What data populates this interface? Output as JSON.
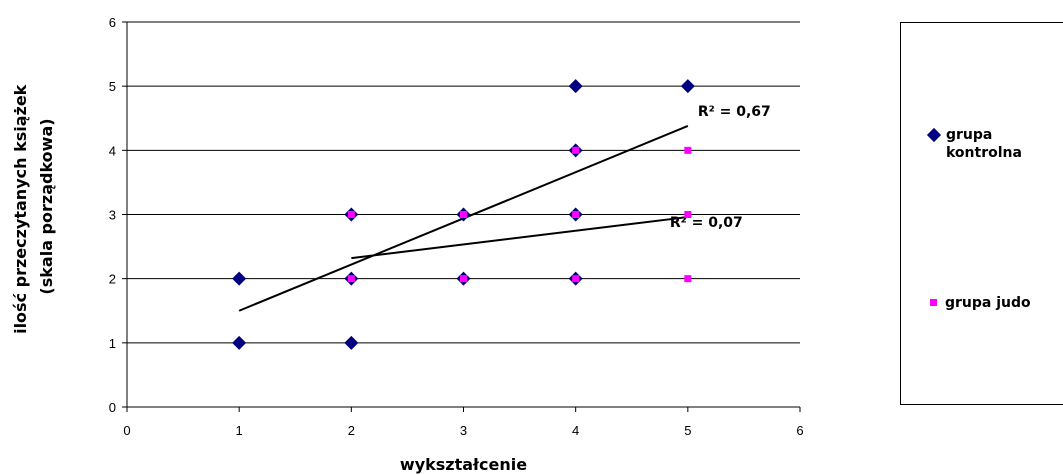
{
  "chart_data": {
    "type": "scatter",
    "xlabel": "wykształcenie",
    "ylabel": [
      "ilość przeczytanych książek",
      "(skala porządkowa)"
    ],
    "xlim": [
      0,
      6
    ],
    "ylim": [
      0,
      6
    ],
    "x_ticks": [
      "0",
      "1",
      "2",
      "3",
      "4",
      "5",
      "6"
    ],
    "y_ticks": [
      "0",
      "1",
      "2",
      "3",
      "4",
      "5",
      "6"
    ],
    "grid": "horizontal",
    "legend_position": "right",
    "series": [
      {
        "name": "grupa kontrolna",
        "marker": "diamond",
        "color": "#000080",
        "points": [
          [
            1,
            1
          ],
          [
            1,
            2
          ],
          [
            2,
            1
          ],
          [
            2,
            2
          ],
          [
            2,
            3
          ],
          [
            3,
            2
          ],
          [
            3,
            3
          ],
          [
            4,
            2
          ],
          [
            4,
            3
          ],
          [
            4,
            4
          ],
          [
            4,
            5
          ],
          [
            5,
            5
          ]
        ],
        "trendline": {
          "x_start": 1,
          "y_start": 1.5,
          "x_end": 5,
          "y_end": 4.38,
          "label": "R² = 0,67"
        }
      },
      {
        "name": "grupa judo",
        "marker": "square",
        "color": "#ff00ff",
        "points": [
          [
            2,
            2
          ],
          [
            2,
            3
          ],
          [
            3,
            2
          ],
          [
            3,
            3
          ],
          [
            4,
            2
          ],
          [
            4,
            3
          ],
          [
            4,
            4
          ],
          [
            5,
            2
          ],
          [
            5,
            3
          ],
          [
            5,
            4
          ]
        ],
        "trendline": {
          "x_start": 2,
          "y_start": 2.32,
          "x_end": 5,
          "y_end": 2.96,
          "label": "R² = 0,07"
        }
      }
    ]
  }
}
